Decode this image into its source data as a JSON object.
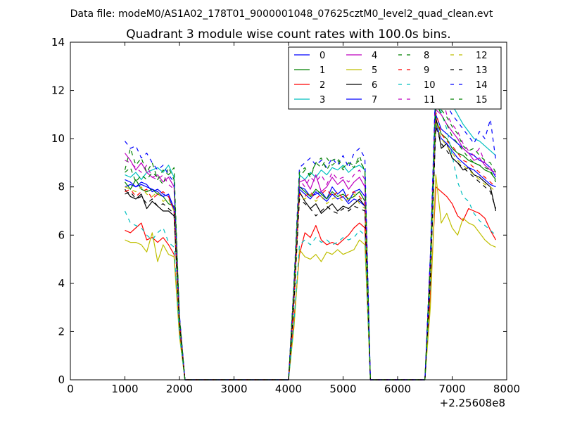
{
  "chart_data": {
    "type": "line",
    "suptitle": "Data file: modeM0/AS1A02_178T01_9000001048_07625cztM0_level2_quad_clean.evt",
    "title": "Quadrant 3 module wise count rates with 100.0s bins.",
    "xlabel": "",
    "ylabel": "",
    "x_offset_label": "+2.25608e8",
    "xlim": [
      0,
      8000
    ],
    "ylim": [
      0,
      14
    ],
    "xticks": [
      "0",
      "1000",
      "2000",
      "3000",
      "4000",
      "5000",
      "6000",
      "7000",
      "8000"
    ],
    "yticks": [
      "0",
      "2",
      "4",
      "6",
      "8",
      "10",
      "12",
      "14"
    ],
    "grid": false,
    "legend_position": "top-right",
    "x": [
      1000,
      1100,
      1200,
      1300,
      1400,
      1500,
      1600,
      1700,
      1800,
      1900,
      2000,
      2100,
      2200,
      2300,
      2400,
      2500,
      2600,
      2700,
      2800,
      2900,
      3000,
      3100,
      3200,
      3300,
      3400,
      3500,
      3600,
      3700,
      3800,
      3900,
      4000,
      4100,
      4200,
      4300,
      4400,
      4500,
      4600,
      4700,
      4800,
      4900,
      5000,
      5100,
      5200,
      5300,
      5400,
      5500,
      5600,
      5700,
      5800,
      5900,
      6000,
      6100,
      6200,
      6300,
      6400,
      6500,
      6600,
      6700,
      6800,
      6900,
      7000,
      7100,
      7200,
      7300,
      7400,
      7500,
      7600,
      7700,
      7800
    ],
    "series": [
      {
        "name": "0",
        "color": "#0000ff",
        "dash": "solid",
        "values": [
          8.0,
          8.1,
          8.0,
          8.2,
          8.1,
          7.8,
          7.9,
          7.7,
          7.6,
          7.0,
          2.5,
          0,
          0,
          0,
          0,
          0,
          0,
          0,
          0,
          0,
          0,
          0,
          0,
          0,
          0,
          0,
          0,
          0,
          0,
          0,
          0,
          3.5,
          8.0,
          7.9,
          7.6,
          7.7,
          7.8,
          7.5,
          8.0,
          7.7,
          7.9,
          7.4,
          7.8,
          7.9,
          7.6,
          0,
          0,
          0,
          0,
          0,
          0,
          0,
          0,
          0,
          0,
          0,
          4.5,
          11.0,
          10.4,
          10.2,
          10.0,
          9.8,
          9.6,
          9.4,
          9.3,
          9.1,
          9.0,
          8.8,
          8.4
        ]
      },
      {
        "name": "1",
        "color": "#008000",
        "dash": "solid",
        "values": [
          8.2,
          7.9,
          8.3,
          7.9,
          7.8,
          7.9,
          7.7,
          7.6,
          7.3,
          7.2,
          2.5,
          0,
          0,
          0,
          0,
          0,
          0,
          0,
          0,
          0,
          0,
          0,
          0,
          0,
          0,
          0,
          0,
          0,
          0,
          0,
          0,
          3.5,
          8.0,
          7.8,
          7.6,
          7.9,
          7.7,
          7.5,
          7.8,
          7.6,
          7.7,
          7.5,
          7.6,
          7.8,
          7.4,
          0,
          0,
          0,
          0,
          0,
          0,
          0,
          0,
          0,
          0,
          0,
          4.5,
          10.8,
          10.2,
          10.0,
          9.6,
          9.4,
          9.3,
          9.1,
          9.0,
          8.9,
          8.7,
          8.6,
          8.3
        ]
      },
      {
        "name": "2",
        "color": "#ff0000",
        "dash": "solid",
        "values": [
          6.2,
          6.1,
          6.3,
          6.5,
          5.8,
          5.9,
          5.7,
          5.9,
          5.6,
          5.2,
          2.0,
          0,
          0,
          0,
          0,
          0,
          0,
          0,
          0,
          0,
          0,
          0,
          0,
          0,
          0,
          0,
          0,
          0,
          0,
          0,
          0,
          2.5,
          5.2,
          6.1,
          5.9,
          6.4,
          5.8,
          5.6,
          5.7,
          5.6,
          5.8,
          6.0,
          6.3,
          6.5,
          6.3,
          0,
          0,
          0,
          0,
          0,
          0,
          0,
          0,
          0,
          0,
          0,
          3.5,
          8.0,
          7.8,
          7.6,
          7.3,
          6.8,
          6.6,
          7.1,
          7.0,
          6.9,
          6.7,
          6.2,
          5.8
        ]
      },
      {
        "name": "3",
        "color": "#00bfbf",
        "dash": "solid",
        "values": [
          8.5,
          8.4,
          8.6,
          8.3,
          8.6,
          8.7,
          8.8,
          8.6,
          8.9,
          8.4,
          2.5,
          0,
          0,
          0,
          0,
          0,
          0,
          0,
          0,
          0,
          0,
          0,
          0,
          0,
          0,
          0,
          0,
          0,
          0,
          0,
          0,
          3.8,
          8.5,
          8.3,
          8.6,
          8.4,
          8.7,
          8.5,
          8.8,
          8.7,
          8.9,
          8.6,
          8.8,
          8.9,
          8.7,
          0,
          0,
          0,
          0,
          0,
          0,
          0,
          0,
          0,
          0,
          0,
          5.0,
          12.3,
          11.8,
          11.5,
          11.4,
          11.0,
          10.6,
          10.3,
          10.0,
          9.9,
          9.7,
          9.5,
          9.3
        ]
      },
      {
        "name": "4",
        "color": "#bf00bf",
        "dash": "solid",
        "values": [
          9.4,
          9.1,
          8.7,
          9.0,
          8.6,
          8.4,
          8.5,
          8.2,
          8.4,
          8.0,
          2.6,
          0,
          0,
          0,
          0,
          0,
          0,
          0,
          0,
          0,
          0,
          0,
          0,
          0,
          0,
          0,
          0,
          0,
          0,
          0,
          0,
          3.8,
          8.2,
          8.3,
          7.9,
          8.5,
          7.8,
          8.0,
          8.4,
          8.1,
          8.3,
          7.9,
          8.2,
          8.4,
          8.0,
          0,
          0,
          0,
          0,
          0,
          0,
          0,
          0,
          0,
          0,
          0,
          5.0,
          11.2,
          11.0,
          10.6,
          10.3,
          10.0,
          9.6,
          9.4,
          9.1,
          9.2,
          8.9,
          8.7,
          8.6
        ]
      },
      {
        "name": "5",
        "color": "#bfbf00",
        "dash": "solid",
        "values": [
          5.8,
          5.7,
          5.7,
          5.6,
          5.3,
          6.1,
          4.9,
          5.6,
          5.2,
          5.1,
          1.8,
          0,
          0,
          0,
          0,
          0,
          0,
          0,
          0,
          0,
          0,
          0,
          0,
          0,
          0,
          0,
          0,
          0,
          0,
          0,
          0,
          2.2,
          5.4,
          5.1,
          5.0,
          5.2,
          4.9,
          5.3,
          5.2,
          5.4,
          5.2,
          5.3,
          5.4,
          5.8,
          5.6,
          0,
          0,
          0,
          0,
          0,
          0,
          0,
          0,
          0,
          0,
          0,
          3.0,
          8.5,
          6.5,
          6.9,
          6.3,
          6.0,
          6.7,
          6.5,
          6.4,
          6.1,
          5.8,
          5.6,
          5.5
        ]
      },
      {
        "name": "6",
        "color": "#000000",
        "dash": "solid",
        "values": [
          7.9,
          7.6,
          7.5,
          7.7,
          7.1,
          7.4,
          7.2,
          7.0,
          7.0,
          6.8,
          2.3,
          0,
          0,
          0,
          0,
          0,
          0,
          0,
          0,
          0,
          0,
          0,
          0,
          0,
          0,
          0,
          0,
          0,
          0,
          0,
          0,
          3.3,
          7.8,
          7.4,
          7.1,
          7.3,
          6.9,
          7.1,
          7.3,
          7.0,
          7.2,
          7.1,
          7.3,
          7.5,
          7.2,
          0,
          0,
          0,
          0,
          0,
          0,
          0,
          0,
          0,
          0,
          0,
          4.2,
          10.9,
          9.6,
          9.8,
          9.2,
          9.0,
          8.7,
          8.8,
          8.5,
          8.4,
          8.2,
          8.0,
          7.0
        ]
      },
      {
        "name": "7",
        "color": "#0000ff",
        "dash": "solid",
        "values": [
          8.3,
          8.2,
          8.0,
          8.1,
          8.0,
          7.9,
          7.8,
          7.6,
          7.7,
          7.1,
          2.4,
          0,
          0,
          0,
          0,
          0,
          0,
          0,
          0,
          0,
          0,
          0,
          0,
          0,
          0,
          0,
          0,
          0,
          0,
          0,
          0,
          3.4,
          7.9,
          7.7,
          7.5,
          7.8,
          7.6,
          7.4,
          7.7,
          7.5,
          7.6,
          7.3,
          7.5,
          7.4,
          7.2,
          0,
          0,
          0,
          0,
          0,
          0,
          0,
          0,
          0,
          0,
          0,
          4.4,
          10.6,
          10.0,
          9.8,
          9.5,
          9.2,
          9.0,
          8.8,
          8.7,
          8.5,
          8.3,
          8.1,
          8.0
        ]
      },
      {
        "name": "8",
        "color": "#008000",
        "dash": "dashed",
        "values": [
          8.6,
          8.8,
          8.2,
          8.5,
          8.3,
          8.6,
          8.4,
          8.1,
          8.8,
          8.3,
          2.6,
          0,
          0,
          0,
          0,
          0,
          0,
          0,
          0,
          0,
          0,
          0,
          0,
          0,
          0,
          0,
          0,
          0,
          0,
          0,
          0,
          4.0,
          8.4,
          8.7,
          8.5,
          9.0,
          8.8,
          9.2,
          8.9,
          9.1,
          8.7,
          9.0,
          8.8,
          9.3,
          8.6,
          0,
          0,
          0,
          0,
          0,
          0,
          0,
          0,
          0,
          0,
          0,
          5.0,
          11.7,
          11.2,
          10.9,
          10.5,
          10.2,
          9.7,
          9.5,
          9.6,
          9.3,
          9.1,
          9.0,
          8.6
        ]
      },
      {
        "name": "9",
        "color": "#ff0000",
        "dash": "dashed",
        "values": [
          7.8,
          7.9,
          7.6,
          7.8,
          7.9,
          7.5,
          7.7,
          7.8,
          7.6,
          7.0,
          2.4,
          0,
          0,
          0,
          0,
          0,
          0,
          0,
          0,
          0,
          0,
          0,
          0,
          0,
          0,
          0,
          0,
          0,
          0,
          0,
          0,
          3.4,
          7.7,
          7.6,
          7.8,
          7.5,
          7.7,
          7.9,
          7.6,
          7.8,
          7.5,
          7.7,
          7.8,
          7.6,
          7.3,
          0,
          0,
          0,
          0,
          0,
          0,
          0,
          0,
          0,
          0,
          0,
          4.5,
          11.1,
          10.2,
          9.9,
          9.7,
          9.4,
          9.1,
          9.0,
          8.8,
          8.6,
          8.4,
          8.2,
          8.0
        ]
      },
      {
        "name": "10",
        "color": "#00bfbf",
        "dash": "dashed",
        "values": [
          7.0,
          6.5,
          6.4,
          6.3,
          6.0,
          5.8,
          6.1,
          6.3,
          5.7,
          5.5,
          1.9,
          0,
          0,
          0,
          0,
          0,
          0,
          0,
          0,
          0,
          0,
          0,
          0,
          0,
          0,
          0,
          0,
          0,
          0,
          0,
          0,
          2.4,
          5.6,
          5.8,
          5.6,
          5.9,
          5.7,
          5.8,
          5.6,
          5.7,
          5.9,
          5.8,
          5.9,
          6.2,
          6.0,
          0,
          0,
          0,
          0,
          0,
          0,
          0,
          0,
          0,
          0,
          0,
          4.0,
          12.0,
          11.1,
          10.4,
          9.3,
          8.2,
          7.6,
          7.4,
          6.9,
          6.6,
          6.4,
          6.2,
          6.0
        ]
      },
      {
        "name": "11",
        "color": "#bf00bf",
        "dash": "dashed",
        "values": [
          9.1,
          9.0,
          8.8,
          8.6,
          8.9,
          8.4,
          8.3,
          8.5,
          8.1,
          7.9,
          2.6,
          0,
          0,
          0,
          0,
          0,
          0,
          0,
          0,
          0,
          0,
          0,
          0,
          0,
          0,
          0,
          0,
          0,
          0,
          0,
          0,
          3.9,
          8.3,
          8.0,
          8.4,
          8.2,
          8.5,
          8.1,
          8.6,
          8.3,
          8.4,
          8.2,
          8.5,
          8.7,
          8.3,
          0,
          0,
          0,
          0,
          0,
          0,
          0,
          0,
          0,
          0,
          0,
          5.1,
          12.6,
          11.9,
          11.0,
          10.6,
          10.3,
          9.8,
          9.5,
          9.3,
          9.6,
          9.0,
          8.8,
          8.5
        ]
      },
      {
        "name": "12",
        "color": "#bfbf00",
        "dash": "dashed",
        "values": [
          8.0,
          7.9,
          7.8,
          8.0,
          7.7,
          7.6,
          7.8,
          7.4,
          7.5,
          7.0,
          2.3,
          0,
          0,
          0,
          0,
          0,
          0,
          0,
          0,
          0,
          0,
          0,
          0,
          0,
          0,
          0,
          0,
          0,
          0,
          0,
          0,
          3.3,
          7.6,
          7.5,
          7.7,
          7.4,
          7.6,
          7.3,
          7.5,
          7.6,
          7.4,
          7.5,
          7.7,
          7.3,
          7.1,
          0,
          0,
          0,
          0,
          0,
          0,
          0,
          0,
          0,
          0,
          0,
          4.3,
          10.7,
          10.0,
          9.7,
          9.4,
          9.1,
          8.9,
          8.7,
          8.5,
          8.3,
          8.1,
          8.0,
          7.8
        ]
      },
      {
        "name": "13",
        "color": "#000000",
        "dash": "dashed",
        "values": [
          7.7,
          7.8,
          7.5,
          7.6,
          7.3,
          7.5,
          7.2,
          7.3,
          7.1,
          6.9,
          2.3,
          0,
          0,
          0,
          0,
          0,
          0,
          0,
          0,
          0,
          0,
          0,
          0,
          0,
          0,
          0,
          0,
          0,
          0,
          0,
          0,
          3.2,
          7.5,
          7.3,
          7.1,
          6.8,
          7.0,
          7.2,
          7.0,
          6.9,
          7.1,
          7.0,
          7.2,
          7.1,
          7.0,
          0,
          0,
          0,
          0,
          0,
          0,
          0,
          0,
          0,
          0,
          0,
          4.2,
          10.5,
          9.8,
          9.5,
          9.2,
          9.0,
          8.8,
          8.6,
          8.4,
          8.2,
          8.0,
          7.8,
          7.1
        ]
      },
      {
        "name": "14",
        "color": "#0000ff",
        "dash": "dashed",
        "values": [
          9.9,
          9.6,
          9.7,
          9.2,
          9.4,
          9.0,
          8.7,
          8.9,
          8.5,
          8.2,
          2.7,
          0,
          0,
          0,
          0,
          0,
          0,
          0,
          0,
          0,
          0,
          0,
          0,
          0,
          0,
          0,
          0,
          0,
          0,
          0,
          0,
          4.1,
          8.8,
          9.0,
          9.2,
          8.9,
          9.1,
          8.8,
          9.2,
          8.9,
          9.3,
          8.8,
          9.4,
          9.6,
          9.2,
          0,
          0,
          0,
          0,
          0,
          0,
          0,
          0,
          0,
          0,
          0,
          5.2,
          12.4,
          12.2,
          11.4,
          11.0,
          10.7,
          10.4,
          10.1,
          9.8,
          10.3,
          10.0,
          10.8,
          9.1
        ]
      },
      {
        "name": "15",
        "color": "#008000",
        "dash": "dashed",
        "values": [
          8.7,
          9.6,
          8.9,
          9.2,
          8.6,
          9.0,
          8.3,
          8.7,
          8.5,
          8.8,
          2.6,
          0,
          0,
          0,
          0,
          0,
          0,
          0,
          0,
          0,
          0,
          0,
          0,
          0,
          0,
          0,
          0,
          0,
          0,
          0,
          0,
          4.0,
          8.6,
          8.8,
          8.4,
          9.0,
          9.2,
          8.7,
          9.1,
          9.2,
          8.8,
          9.0,
          8.9,
          9.1,
          8.7,
          0,
          0,
          0,
          0,
          0,
          0,
          0,
          0,
          0,
          0,
          0,
          5.0,
          11.5,
          11.0,
          10.6,
          10.1,
          9.8,
          9.5,
          9.2,
          9.0,
          8.9,
          8.8,
          8.7,
          8.2
        ]
      }
    ]
  }
}
